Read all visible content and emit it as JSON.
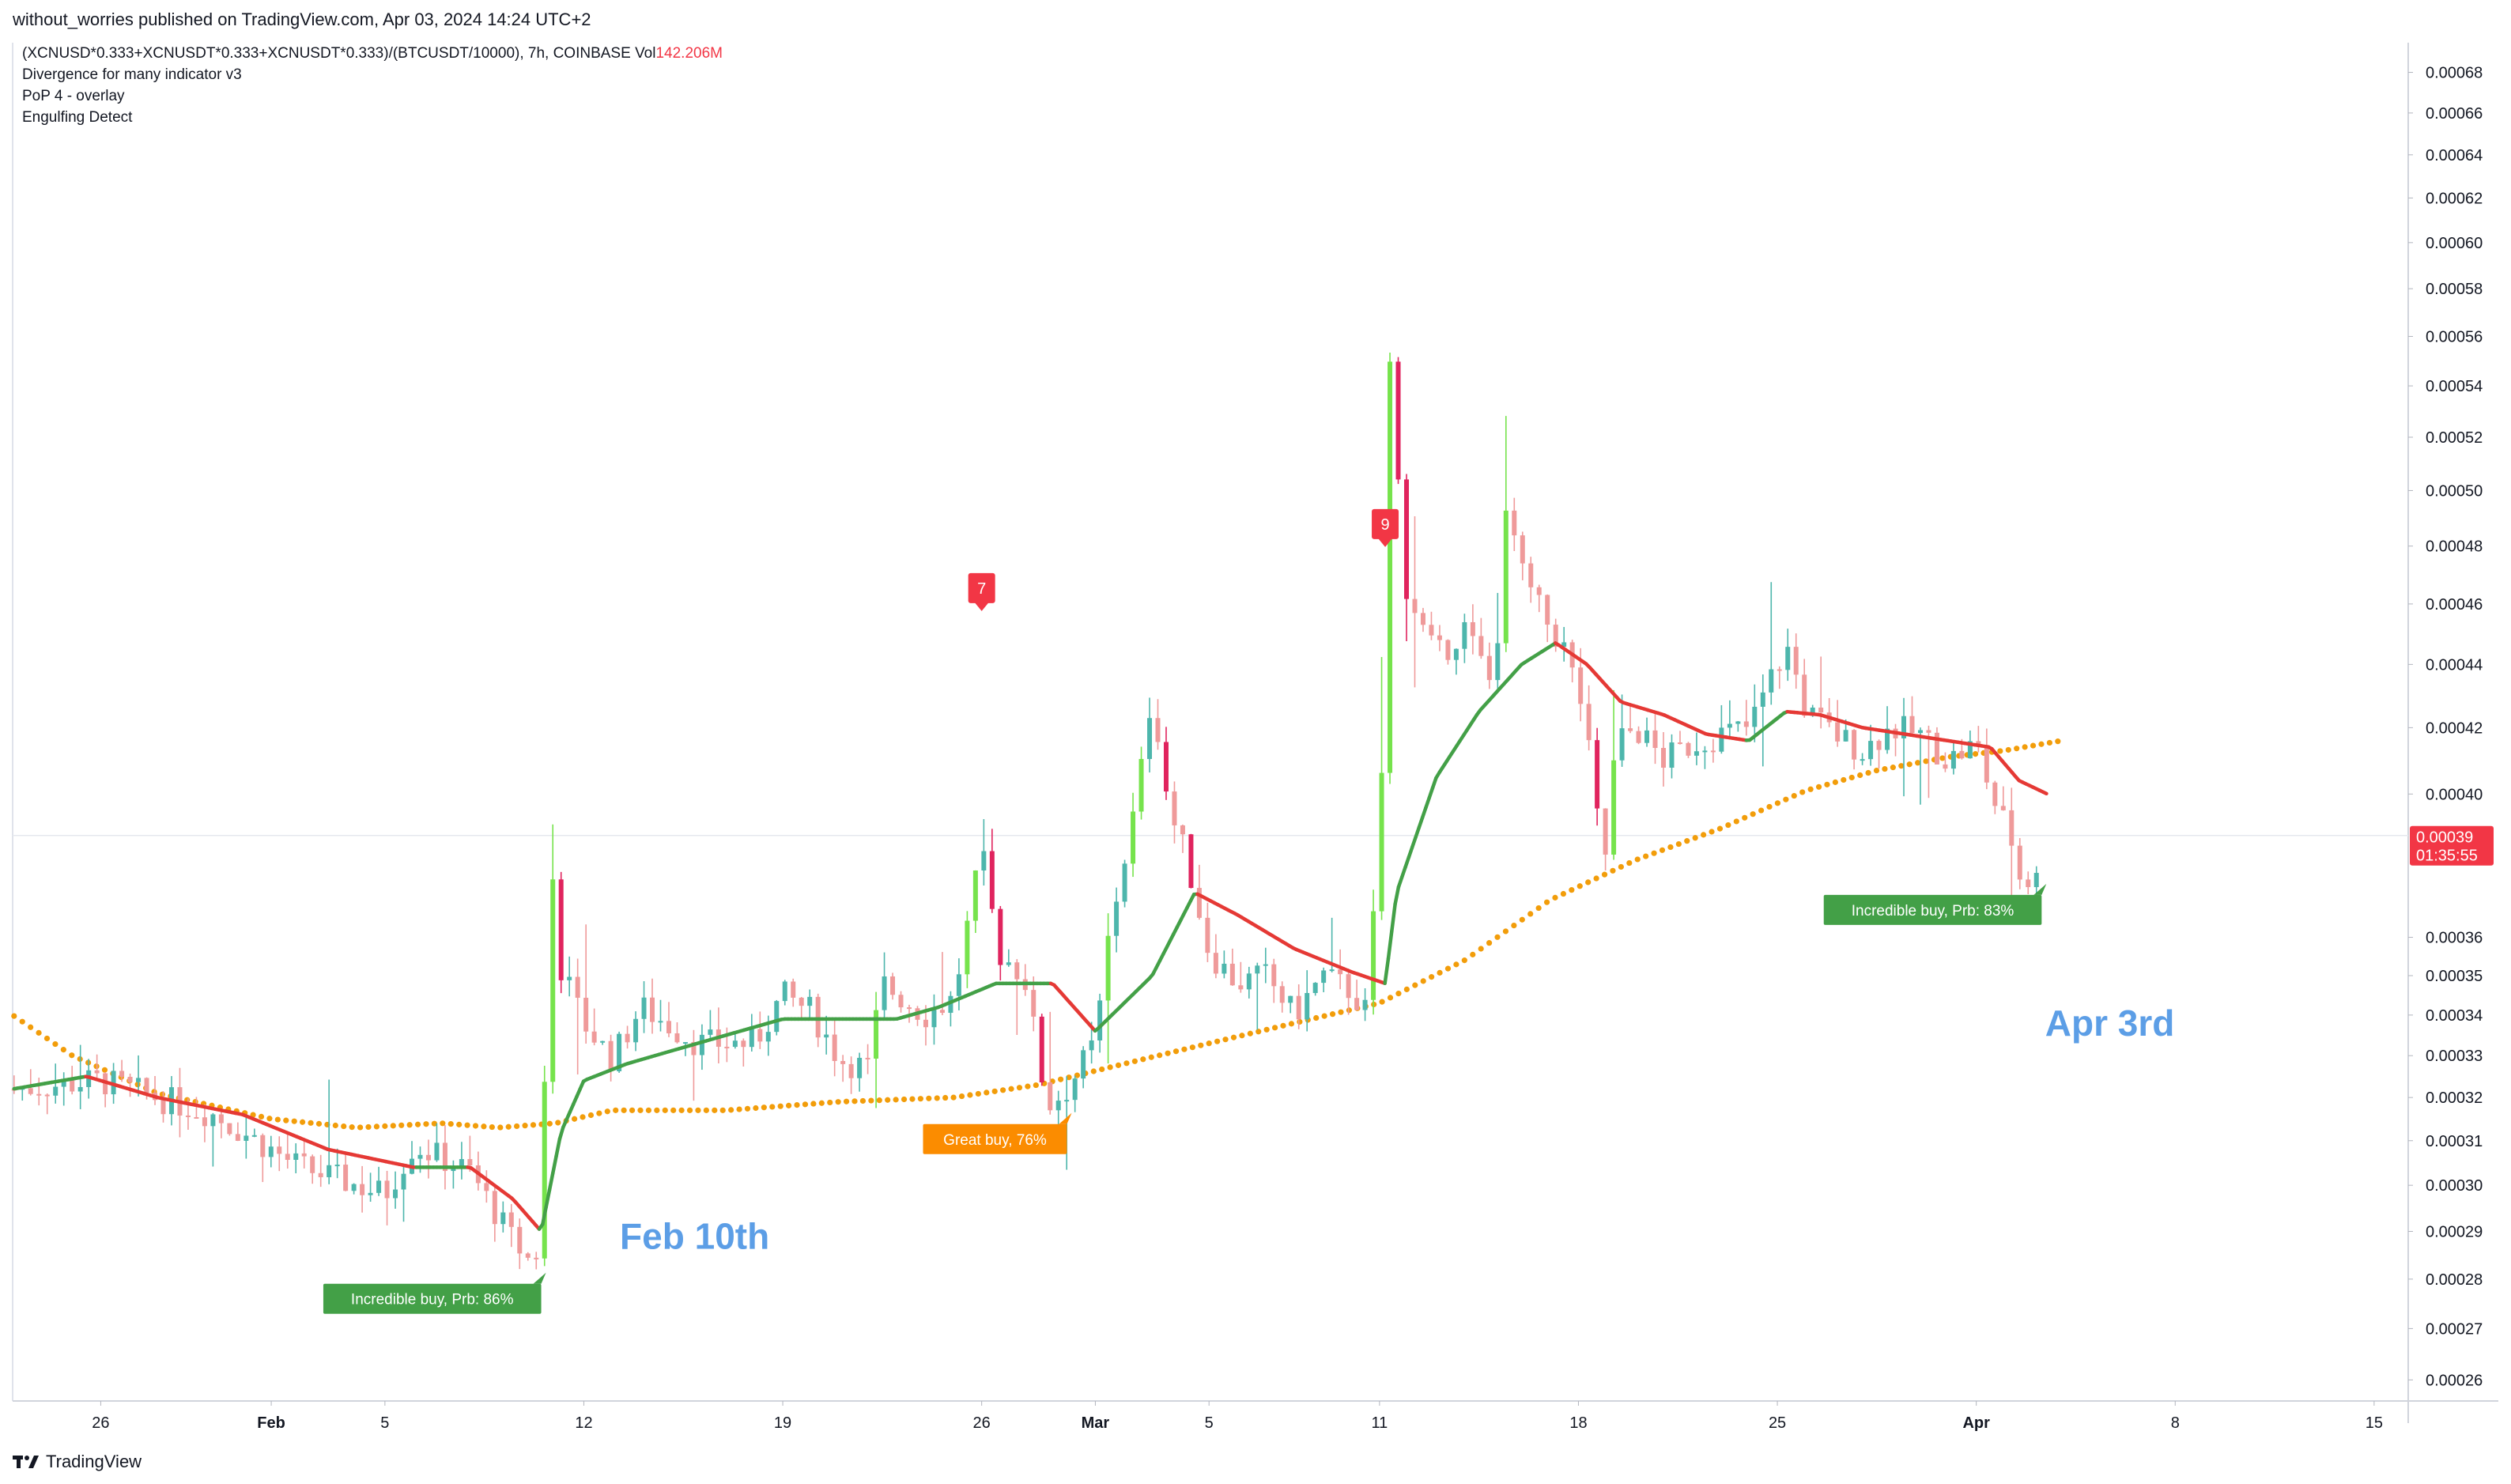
{
  "header": {
    "publisher_line": "without_worries published on TradingView.com, Apr 03, 2024 14:24 UTC+2"
  },
  "legend": {
    "symbol_line": "(XCNUSD*0.333+XCNUSDT*0.333+XCNUSDT*0.333)/(BTCUSDT/10000), 7h, COINBASE",
    "vol_label": "Vol",
    "vol_value": "142.206M",
    "indicators": [
      "Divergence for many indicator v3",
      "PoP 4 - overlay",
      "Engulfing Detect"
    ]
  },
  "brand": {
    "logo_icon": "tradingview-logo-icon",
    "name": "TradingView"
  },
  "colors": {
    "bull": "#4db6ac",
    "bear": "#ef9a9a",
    "bull_strong": "#76e34c",
    "bear_strong": "#e0245e",
    "ma_up": "#43a047",
    "ma_down": "#e53935",
    "dots": "#f29d0a",
    "label_red": "#f23645",
    "buy_green": "#43a047",
    "buy_orange": "#fb8c00",
    "annotation_blue": "#5c9ee6",
    "axis_text": "#131722"
  },
  "chart_data": {
    "type": "candlestick",
    "interval": "7h",
    "y_axis": {
      "scale": "log",
      "range": [
        0.000256,
        0.000695
      ],
      "ticks": [
        "0.00068",
        "0.00066",
        "0.00064",
        "0.00062",
        "0.00060",
        "0.00058",
        "0.00056",
        "0.00054",
        "0.00052",
        "0.00050",
        "0.00048",
        "0.00046",
        "0.00044",
        "0.00042",
        "0.00040",
        "0.00036",
        "0.00035",
        "0.00034",
        "0.00033",
        "0.00032",
        "0.00031",
        "0.00030",
        "0.00029",
        "0.00028",
        "0.00027",
        "0.00026"
      ],
      "position": "right"
    },
    "x_axis": {
      "ticks": [
        {
          "label": "26",
          "day": -6,
          "bold": false
        },
        {
          "label": "Feb",
          "day": 0,
          "bold": true
        },
        {
          "label": "5",
          "day": 4,
          "bold": false
        },
        {
          "label": "12",
          "day": 11,
          "bold": false
        },
        {
          "label": "19",
          "day": 18,
          "bold": false
        },
        {
          "label": "26",
          "day": 25,
          "bold": false
        },
        {
          "label": "Mar",
          "day": 29,
          "bold": true
        },
        {
          "label": "5",
          "day": 33,
          "bold": false
        },
        {
          "label": "11",
          "day": 39,
          "bold": false
        },
        {
          "label": "18",
          "day": 46,
          "bold": false
        },
        {
          "label": "25",
          "day": 53,
          "bold": false
        },
        {
          "label": "Apr",
          "day": 60,
          "bold": true
        },
        {
          "label": "8",
          "day": 67,
          "bold": false
        },
        {
          "label": "15",
          "day": 74,
          "bold": false
        }
      ],
      "range_days": [
        -9.1,
        75.2
      ]
    },
    "last_price": {
      "value": 0.000388,
      "price_label": "0.00039",
      "countdown": "01:35:55"
    },
    "key_points": [
      {
        "day": -9.0,
        "close": 0.000322
      },
      {
        "day": -6.0,
        "close": 0.000324
      },
      {
        "day": -2.0,
        "close": 0.000316
      },
      {
        "day": 1.0,
        "close": 0.000304
      },
      {
        "day": 4.0,
        "close": 0.000298
      },
      {
        "day": 5.0,
        "close": 0.000309
      },
      {
        "day": 7.0,
        "close": 0.000303
      },
      {
        "day": 8.5,
        "close": 0.000288
      },
      {
        "day": 9.2,
        "close": 0.000283
      },
      {
        "day": 9.5,
        "close": 0.000289
      },
      {
        "day": 9.8,
        "close": 0.000385
      },
      {
        "day": 10.2,
        "close": 0.000352
      },
      {
        "day": 11.0,
        "close": 0.000338
      },
      {
        "day": 12.0,
        "close": 0.000329
      },
      {
        "day": 13.0,
        "close": 0.000342
      },
      {
        "day": 15.0,
        "close": 0.000333
      },
      {
        "day": 17.0,
        "close": 0.000333
      },
      {
        "day": 18.0,
        "close": 0.000345
      },
      {
        "day": 19.0,
        "close": 0.000341
      },
      {
        "day": 20.0,
        "close": 0.000329
      },
      {
        "day": 21.0,
        "close": 0.000327
      },
      {
        "day": 21.5,
        "close": 0.000348
      },
      {
        "day": 23.0,
        "close": 0.00034
      },
      {
        "day": 24.0,
        "close": 0.000344
      },
      {
        "day": 25.0,
        "close": 0.000383
      },
      {
        "day": 25.6,
        "close": 0.000356
      },
      {
        "day": 26.5,
        "close": 0.00035
      },
      {
        "day": 27.3,
        "close": 0.000318
      },
      {
        "day": 28.0,
        "close": 0.000322
      },
      {
        "day": 29.0,
        "close": 0.000333
      },
      {
        "day": 29.5,
        "close": 0.000362
      },
      {
        "day": 30.5,
        "close": 0.0004
      },
      {
        "day": 31.0,
        "close": 0.000432
      },
      {
        "day": 31.6,
        "close": 0.000395
      },
      {
        "day": 32.2,
        "close": 0.000382
      },
      {
        "day": 33.0,
        "close": 0.000356
      },
      {
        "day": 34.0,
        "close": 0.000348
      },
      {
        "day": 35.0,
        "close": 0.00035
      },
      {
        "day": 36.0,
        "close": 0.00034
      },
      {
        "day": 37.0,
        "close": 0.00035
      },
      {
        "day": 38.0,
        "close": 0.000346
      },
      {
        "day": 38.6,
        "close": 0.00034
      },
      {
        "day": 39.1,
        "close": 0.00041
      },
      {
        "day": 39.4,
        "close": 0.000568
      },
      {
        "day": 39.8,
        "close": 0.00047
      },
      {
        "day": 40.5,
        "close": 0.000452
      },
      {
        "day": 41.0,
        "close": 0.000442
      },
      {
        "day": 42.0,
        "close": 0.000452
      },
      {
        "day": 43.0,
        "close": 0.000432
      },
      {
        "day": 43.5,
        "close": 0.000495
      },
      {
        "day": 44.0,
        "close": 0.00047
      },
      {
        "day": 44.8,
        "close": 0.000455
      },
      {
        "day": 45.5,
        "close": 0.000445
      },
      {
        "day": 46.2,
        "close": 0.000425
      },
      {
        "day": 46.6,
        "close": 0.000395
      },
      {
        "day": 47.0,
        "close": 0.000381
      },
      {
        "day": 47.3,
        "close": 0.000415
      },
      {
        "day": 48.0,
        "close": 0.00042
      },
      {
        "day": 49.0,
        "close": 0.00041
      },
      {
        "day": 50.0,
        "close": 0.000415
      },
      {
        "day": 51.0,
        "close": 0.000418
      },
      {
        "day": 52.0,
        "close": 0.00042
      },
      {
        "day": 53.0,
        "close": 0.00044
      },
      {
        "day": 53.4,
        "close": 0.000445
      },
      {
        "day": 54.0,
        "close": 0.000425
      },
      {
        "day": 55.0,
        "close": 0.000418
      },
      {
        "day": 56.0,
        "close": 0.000413
      },
      {
        "day": 57.0,
        "close": 0.00042
      },
      {
        "day": 58.0,
        "close": 0.000418
      },
      {
        "day": 59.0,
        "close": 0.00041
      },
      {
        "day": 60.0,
        "close": 0.000415
      },
      {
        "day": 60.6,
        "close": 0.000398
      },
      {
        "day": 61.2,
        "close": 0.000388
      },
      {
        "day": 61.6,
        "close": 0.000374
      },
      {
        "day": 62.0,
        "close": 0.000376
      },
      {
        "day": 62.4,
        "close": 0.000388
      }
    ],
    "series": [
      {
        "name": "",
        "kind": "dotted-ma",
        "color": "#f29d0a",
        "points": [
          [
            -9.1,
            0.00034
          ],
          [
            -7.0,
            0.00033
          ],
          [
            -4.0,
            0.000321
          ],
          [
            0.0,
            0.000315
          ],
          [
            3.0,
            0.000313
          ],
          [
            6.0,
            0.000314
          ],
          [
            8.0,
            0.000313
          ],
          [
            10.0,
            0.000314
          ],
          [
            12.0,
            0.000317
          ],
          [
            16.0,
            0.000317
          ],
          [
            20.0,
            0.000319
          ],
          [
            24.0,
            0.00032
          ],
          [
            27.0,
            0.000323
          ],
          [
            30.0,
            0.000328
          ],
          [
            33.0,
            0.000333
          ],
          [
            36.0,
            0.000338
          ],
          [
            39.0,
            0.000343
          ],
          [
            42.0,
            0.000354
          ],
          [
            45.0,
            0.00037
          ],
          [
            48.0,
            0.000381
          ],
          [
            51.0,
            0.00039
          ],
          [
            54.0,
            0.000401
          ],
          [
            56.5,
            0.000407
          ],
          [
            59.0,
            0.000411
          ],
          [
            61.0,
            0.000413
          ],
          [
            63.0,
            0.000416
          ]
        ]
      },
      {
        "name": "",
        "kind": "trend-ma",
        "points": [
          [
            -9.1,
            0.000322
          ],
          [
            -6.5,
            0.000325
          ],
          [
            -4.0,
            0.00032
          ],
          [
            -1.0,
            0.000316
          ],
          [
            2.0,
            0.000308
          ],
          [
            5.0,
            0.000304
          ],
          [
            7.0,
            0.000304
          ],
          [
            8.5,
            0.000297
          ],
          [
            9.5,
            0.00029
          ],
          [
            10.2,
            0.000312
          ],
          [
            11.0,
            0.000324
          ],
          [
            12.5,
            0.000328
          ],
          [
            14.0,
            0.000331
          ],
          [
            16.0,
            0.000335
          ],
          [
            18.0,
            0.000339
          ],
          [
            20.0,
            0.000339
          ],
          [
            22.0,
            0.000339
          ],
          [
            23.5,
            0.000342
          ],
          [
            25.5,
            0.000348
          ],
          [
            27.5,
            0.000348
          ],
          [
            29.0,
            0.000336
          ],
          [
            31.0,
            0.00035
          ],
          [
            32.5,
            0.000372
          ],
          [
            34.0,
            0.000366
          ],
          [
            36.0,
            0.000357
          ],
          [
            38.0,
            0.000351
          ],
          [
            39.2,
            0.000348
          ],
          [
            39.6,
            0.000372
          ],
          [
            41.0,
            0.000405
          ],
          [
            42.5,
            0.000425
          ],
          [
            44.0,
            0.00044
          ],
          [
            45.2,
            0.000447
          ],
          [
            46.3,
            0.00044
          ],
          [
            47.5,
            0.000428
          ],
          [
            49.0,
            0.000424
          ],
          [
            50.5,
            0.000418
          ],
          [
            52.0,
            0.000416
          ],
          [
            53.3,
            0.000425
          ],
          [
            54.5,
            0.000424
          ],
          [
            56.0,
            0.00042
          ],
          [
            57.5,
            0.000418
          ],
          [
            59.0,
            0.000416
          ],
          [
            60.5,
            0.000414
          ],
          [
            61.5,
            0.000404
          ],
          [
            62.5,
            0.0004
          ]
        ]
      }
    ],
    "labels": [
      {
        "kind": "count-flag",
        "text": "7",
        "day": 25.0,
        "price": 0.000456
      },
      {
        "kind": "count-flag",
        "text": "9",
        "day": 39.2,
        "price": 0.000478
      },
      {
        "kind": "buy-label",
        "text": "Incredible buy, Prb: 86%",
        "day": 9.5,
        "price": 0.000281,
        "color": "green"
      },
      {
        "kind": "buy-label",
        "text": "Great buy,  76%",
        "day": 28.0,
        "price": 0.000316,
        "color": "orange"
      },
      {
        "kind": "buy-label",
        "text": "Incredible buy, Prb: 83%",
        "day": 62.3,
        "price": 0.000374,
        "color": "green"
      }
    ],
    "annotations": [
      {
        "text": "Feb 10th",
        "day": 14.9,
        "price": 0.000289
      },
      {
        "text": "Apr 3rd",
        "day": 64.7,
        "price": 0.000338
      }
    ]
  }
}
